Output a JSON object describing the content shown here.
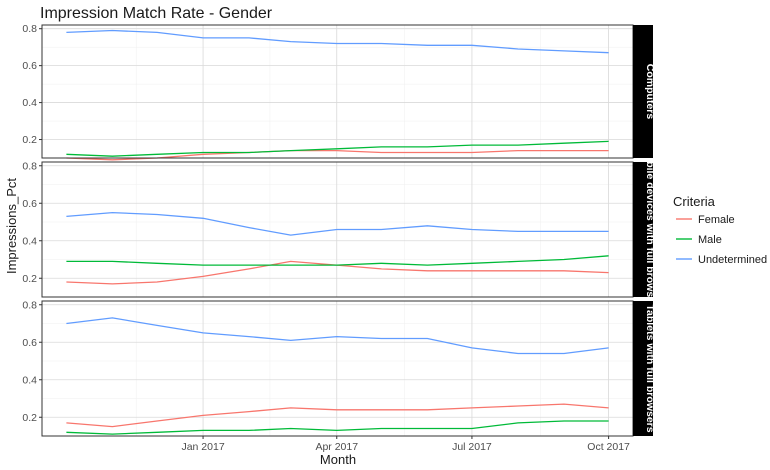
{
  "chart_data": {
    "type": "line",
    "title": "Impression Match Rate - Gender",
    "xlabel": "Month",
    "ylabel": "Impressions_Pct",
    "x": [
      "2016-10-01",
      "2016-11-01",
      "2016-12-01",
      "2017-01-01",
      "2017-02-01",
      "2017-03-01",
      "2017-04-01",
      "2017-05-01",
      "2017-06-01",
      "2017-07-01",
      "2017-08-01",
      "2017-09-01",
      "2017-10-01"
    ],
    "x_ticks": [
      {
        "date": "2017-01-01",
        "label": "Jan 2017"
      },
      {
        "date": "2017-04-01",
        "label": "Apr 2017"
      },
      {
        "date": "2017-07-01",
        "label": "Jul 2017"
      },
      {
        "date": "2017-10-01",
        "label": "Oct 2017"
      }
    ],
    "y_ticks": [
      0.2,
      0.4,
      0.6,
      0.8
    ],
    "ylim": [
      0.1,
      0.82
    ],
    "grid": true,
    "legend": {
      "title": "Criteria",
      "position": "right",
      "entries": [
        {
          "label": "Female",
          "color": "#F8766D"
        },
        {
          "label": "Male",
          "color": "#00BA38"
        },
        {
          "label": "Undetermined",
          "color": "#619CFF"
        }
      ]
    },
    "facets": [
      {
        "label": "Computers",
        "series": [
          {
            "name": "Female",
            "values": [
              0.1,
              0.09,
              0.1,
              0.12,
              0.13,
              0.14,
              0.14,
              0.13,
              0.13,
              0.13,
              0.14,
              0.14,
              0.14
            ]
          },
          {
            "name": "Male",
            "values": [
              0.12,
              0.11,
              0.12,
              0.13,
              0.13,
              0.14,
              0.15,
              0.16,
              0.16,
              0.17,
              0.17,
              0.18,
              0.19
            ]
          },
          {
            "name": "Undetermined",
            "values": [
              0.78,
              0.79,
              0.78,
              0.75,
              0.75,
              0.73,
              0.72,
              0.72,
              0.71,
              0.71,
              0.69,
              0.68,
              0.67
            ]
          }
        ]
      },
      {
        "label": "Mobile devices with full browsers",
        "series": [
          {
            "name": "Female",
            "values": [
              0.18,
              0.17,
              0.18,
              0.21,
              0.25,
              0.29,
              0.27,
              0.25,
              0.24,
              0.24,
              0.24,
              0.24,
              0.23
            ]
          },
          {
            "name": "Male",
            "values": [
              0.29,
              0.29,
              0.28,
              0.27,
              0.27,
              0.27,
              0.27,
              0.28,
              0.27,
              0.28,
              0.29,
              0.3,
              0.32
            ]
          },
          {
            "name": "Undetermined",
            "values": [
              0.53,
              0.55,
              0.54,
              0.52,
              0.47,
              0.43,
              0.46,
              0.46,
              0.48,
              0.46,
              0.45,
              0.45,
              0.45
            ]
          }
        ]
      },
      {
        "label": "Tablets with full browsers",
        "series": [
          {
            "name": "Female",
            "values": [
              0.17,
              0.15,
              0.18,
              0.21,
              0.23,
              0.25,
              0.24,
              0.24,
              0.24,
              0.25,
              0.26,
              0.27,
              0.25
            ]
          },
          {
            "name": "Male",
            "values": [
              0.12,
              0.11,
              0.12,
              0.13,
              0.13,
              0.14,
              0.13,
              0.14,
              0.14,
              0.14,
              0.17,
              0.18,
              0.18
            ]
          },
          {
            "name": "Undetermined",
            "values": [
              0.7,
              0.73,
              0.69,
              0.65,
              0.63,
              0.61,
              0.63,
              0.62,
              0.62,
              0.57,
              0.54,
              0.54,
              0.57
            ]
          }
        ]
      }
    ]
  }
}
